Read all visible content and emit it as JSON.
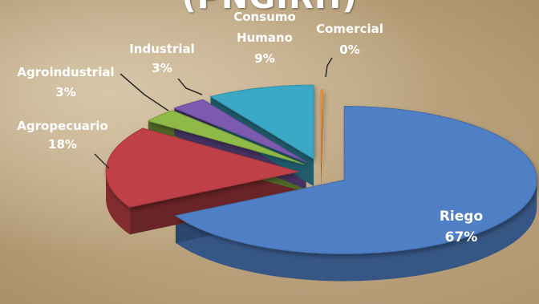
{
  "chart_data": {
    "type": "pie",
    "title": "(PNGIRH)",
    "slices": [
      {
        "name": "Riego",
        "percent": 67,
        "label": "67%",
        "color": "#4f7fc4"
      },
      {
        "name": "Agropecuario",
        "percent": 18,
        "label": "18%",
        "color": "#bf4146"
      },
      {
        "name": "Agroindustrial",
        "percent": 3,
        "label": "3%",
        "color": "#8fba46"
      },
      {
        "name": "Industrial",
        "percent": 3,
        "label": "3%",
        "color": "#7b5ab0"
      },
      {
        "name": "Consumo Humano",
        "percent": 9,
        "label": "9%",
        "color": "#3aa9c6"
      },
      {
        "name": "Comercial",
        "percent": 0,
        "label": "0%",
        "color": "#f39b3c"
      }
    ],
    "legend": "none"
  }
}
